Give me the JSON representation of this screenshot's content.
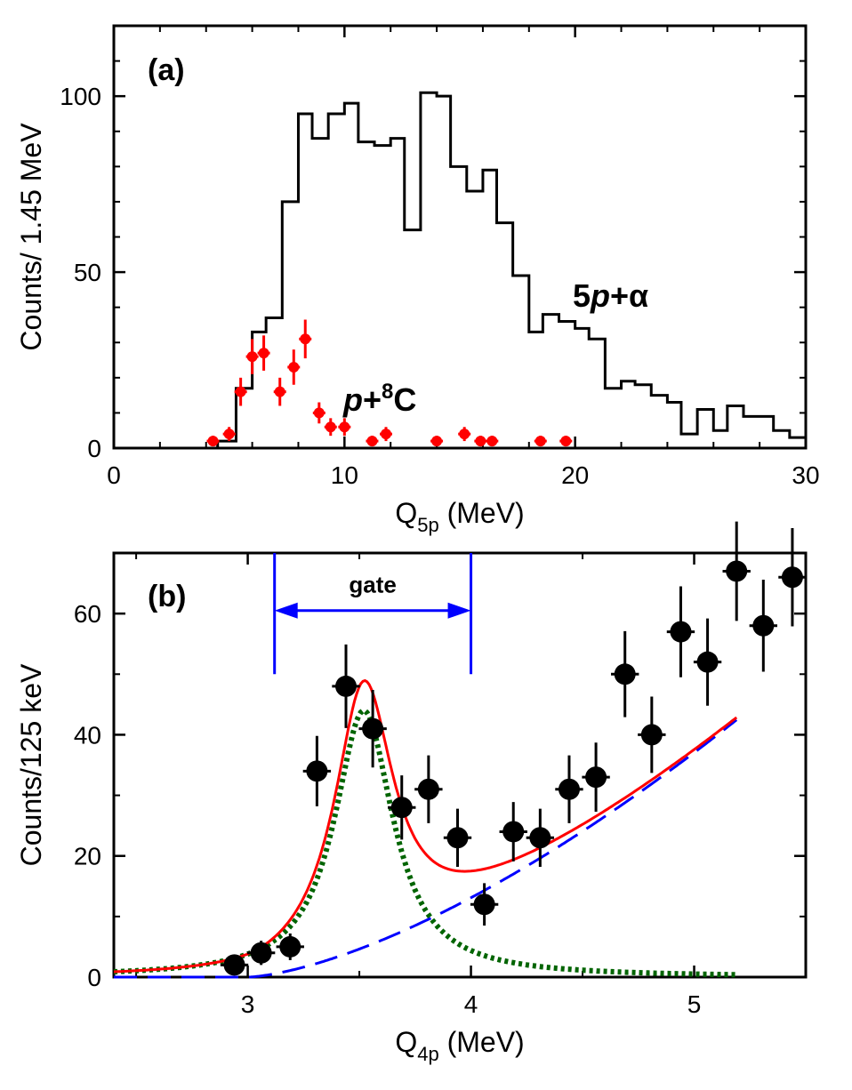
{
  "chart_data": [
    {
      "type": "histogram",
      "panel_label": "(a)",
      "xlabel": {
        "main": "Q",
        "sub": "5p",
        "unit": " (MeV)"
      },
      "ylabel": "Counts/ 1.45 MeV",
      "xlim": [
        0,
        30
      ],
      "ylim": [
        0,
        120
      ],
      "x_ticks": [
        0,
        10,
        20,
        30
      ],
      "y_ticks": [
        0,
        50,
        100
      ],
      "histogram": {
        "name": "5p+α",
        "color": "#000000",
        "edges": [
          4.5,
          5.3,
          6.0,
          6.6,
          7.3,
          8.0,
          8.6,
          9.3,
          10.0,
          10.6,
          11.3,
          12.0,
          12.6,
          13.3,
          14.0,
          14.6,
          15.3,
          16.0,
          16.6,
          17.3,
          18.0,
          18.6,
          19.3,
          20.0,
          20.6,
          21.3,
          22.0,
          22.6,
          23.3,
          24.0,
          24.6,
          25.3,
          26.0,
          26.6,
          27.3,
          28.0,
          28.6,
          29.3,
          30.0
        ],
        "values": [
          2,
          17,
          33,
          37,
          70,
          95,
          88,
          95,
          98,
          87,
          86,
          88,
          62,
          101,
          100,
          80,
          73,
          79,
          64,
          49,
          33,
          38,
          36,
          34,
          31,
          17,
          19,
          18,
          15,
          13,
          4,
          11,
          5,
          12,
          9,
          9,
          5,
          3
        ]
      },
      "points": {
        "name": "p+8C",
        "color": "#ff0000",
        "x": [
          4.3,
          5.0,
          5.5,
          6.0,
          6.5,
          7.2,
          7.8,
          8.3,
          8.9,
          9.4,
          10.0,
          11.2,
          11.8,
          14.0,
          15.2,
          15.9,
          16.4,
          18.5,
          19.6
        ],
        "y": [
          2,
          4,
          16,
          26,
          27,
          16,
          23,
          31,
          10,
          6,
          6,
          2,
          4,
          2,
          4,
          2,
          2,
          2,
          2
        ],
        "yerr": [
          1.5,
          2,
          4,
          5,
          5,
          4,
          5,
          5.5,
          3,
          2.5,
          2.5,
          1.5,
          2,
          1.5,
          2,
          1.5,
          1.5,
          1.5,
          1.5
        ]
      },
      "annotations": [
        {
          "text": "5p+α",
          "color": "#000000"
        },
        {
          "text": "p+8C",
          "color": "#ff0000"
        }
      ]
    },
    {
      "type": "scatter",
      "panel_label": "(b)",
      "xlabel": {
        "main": "Q",
        "sub": "4p",
        "unit": " (MeV)"
      },
      "ylabel": "Counts/125 keV",
      "xlim": [
        2.4,
        5.5
      ],
      "ylim": [
        0,
        70
      ],
      "x_ticks": [
        3,
        4,
        5
      ],
      "y_ticks": [
        0,
        20,
        40,
        60
      ],
      "points": {
        "color": "#000000",
        "x": [
          2.94,
          3.06,
          3.19,
          3.31,
          3.44,
          3.56,
          3.69,
          3.81,
          3.94,
          4.06,
          4.19,
          4.31,
          4.44,
          4.56,
          4.69,
          4.81,
          4.94,
          5.06,
          5.19,
          5.31,
          5.44
        ],
        "y": [
          2,
          4,
          5,
          34,
          48,
          41,
          28,
          31,
          23,
          12,
          24,
          23,
          31,
          33,
          50,
          40,
          57,
          52,
          67,
          58,
          66
        ],
        "yerr": [
          1.4,
          2.0,
          2.2,
          5.8,
          6.9,
          6.4,
          5.3,
          5.6,
          4.8,
          3.5,
          4.9,
          4.8,
          5.6,
          5.7,
          7.1,
          6.3,
          7.5,
          7.2,
          8.2,
          7.6,
          8.1
        ],
        "xerr": 0.0625
      },
      "curves": [
        {
          "name": "total",
          "color": "#ff0000",
          "style": "solid"
        },
        {
          "name": "peak",
          "color": "#006400",
          "style": "dotted"
        },
        {
          "name": "background",
          "color": "#0000ff",
          "style": "dashed"
        }
      ],
      "model": {
        "peak_center": 3.52,
        "peak_gamma": 0.16,
        "peak_amplitude": 44,
        "bg_threshold": 3.0,
        "bg_coeff": 13.1,
        "bg_power": 1.5,
        "x_range": [
          2.4,
          5.19
        ]
      },
      "gate": {
        "label": "gate",
        "x_min": 3.12,
        "x_max": 4.0,
        "color": "#0000ff"
      }
    }
  ]
}
